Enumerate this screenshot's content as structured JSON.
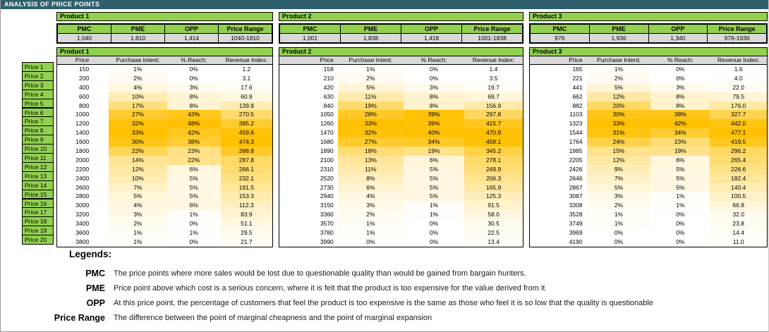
{
  "banner": {
    "title": "ANALYSIS OF PRICE POINTS"
  },
  "summary_headers": [
    "PMC",
    "PME",
    "OPP",
    "Price Range"
  ],
  "table_headers": [
    "Price",
    "Purchase Intent:",
    "% Reach:",
    "Revenue Index:"
  ],
  "row_labels": [
    "Price 1",
    "Price 2",
    "Price 3",
    "Price 4",
    "Price 5",
    "Price 6",
    "Price 7",
    "Price 8",
    "Price 9",
    "Price 10",
    "Price 11",
    "Price 12",
    "Price 13",
    "Price 14",
    "Price 15",
    "Price 16",
    "Price 17",
    "Price 18",
    "Price 19",
    "Price 20"
  ],
  "products": [
    {
      "name": "Product 1",
      "summary": [
        "1,040",
        "1,810",
        "1,414",
        "1040-1810"
      ],
      "rows": [
        [
          "150",
          "1%",
          "0%",
          "1.2"
        ],
        [
          "200",
          "2%",
          "0%",
          "3.1"
        ],
        [
          "400",
          "4%",
          "3%",
          "17.6"
        ],
        [
          "600",
          "10%",
          "8%",
          "60.9"
        ],
        [
          "800",
          "17%",
          "8%",
          "139.8"
        ],
        [
          "1000",
          "27%",
          "43%",
          "270.5"
        ],
        [
          "1200",
          "32%",
          "48%",
          "385.2"
        ],
        [
          "1400",
          "33%",
          "42%",
          "459.6"
        ],
        [
          "1600",
          "30%",
          "38%",
          "474.3"
        ],
        [
          "1800",
          "22%",
          "23%",
          "398.8"
        ],
        [
          "2000",
          "14%",
          "22%",
          "287.8"
        ],
        [
          "2200",
          "12%",
          "6%",
          "266.1"
        ],
        [
          "2400",
          "10%",
          "5%",
          "232.1"
        ],
        [
          "2600",
          "7%",
          "5%",
          "191.5"
        ],
        [
          "2800",
          "5%",
          "5%",
          "153.3"
        ],
        [
          "3000",
          "4%",
          "6%",
          "112.3"
        ],
        [
          "3200",
          "3%",
          "1%",
          "83.9"
        ],
        [
          "3400",
          "2%",
          "0%",
          "51.1"
        ],
        [
          "3600",
          "1%",
          "1%",
          "29.5"
        ],
        [
          "3800",
          "1%",
          "0%",
          "21.7"
        ]
      ]
    },
    {
      "name": "Product 2",
      "summary": [
        "1,001",
        "1,838",
        "1,418",
        "1001-1838"
      ],
      "rows": [
        [
          "158",
          "1%",
          "0%",
          "1.4"
        ],
        [
          "210",
          "2%",
          "0%",
          "3.5"
        ],
        [
          "420",
          "5%",
          "3%",
          "19.7"
        ],
        [
          "630",
          "11%",
          "8%",
          "69.7"
        ],
        [
          "840",
          "19%",
          "8%",
          "156.9"
        ],
        [
          "1050",
          "28%",
          "39%",
          "297.8"
        ],
        [
          "1260",
          "33%",
          "39%",
          "415.7"
        ],
        [
          "1470",
          "32%",
          "40%",
          "470.9"
        ],
        [
          "1680",
          "27%",
          "34%",
          "458.1"
        ],
        [
          "1890",
          "18%",
          "19%",
          "345.2"
        ],
        [
          "2100",
          "13%",
          "6%",
          "278.1"
        ],
        [
          "2310",
          "11%",
          "5%",
          "249.9"
        ],
        [
          "2520",
          "8%",
          "5%",
          "206.3"
        ],
        [
          "2730",
          "6%",
          "5%",
          "165.9"
        ],
        [
          "2940",
          "4%",
          "5%",
          "125.3"
        ],
        [
          "3150",
          "3%",
          "1%",
          "91.5"
        ],
        [
          "3360",
          "2%",
          "1%",
          "58.0"
        ],
        [
          "3570",
          "1%",
          "0%",
          "30.5"
        ],
        [
          "3780",
          "1%",
          "0%",
          "22.5"
        ],
        [
          "3990",
          "0%",
          "0%",
          "13.4"
        ]
      ]
    },
    {
      "name": "Product 3",
      "summary": [
        "976",
        "1,936",
        "1,340",
        "976-1936"
      ],
      "rows": [
        [
          "165",
          "1%",
          "0%",
          "1.6"
        ],
        [
          "221",
          "2%",
          "0%",
          "4.0"
        ],
        [
          "441",
          "5%",
          "3%",
          "22.0"
        ],
        [
          "662",
          "12%",
          "8%",
          "79.5"
        ],
        [
          "882",
          "20%",
          "8%",
          "176.0"
        ],
        [
          "1103",
          "30%",
          "38%",
          "327.7"
        ],
        [
          "1323",
          "33%",
          "42%",
          "442.0"
        ],
        [
          "1544",
          "31%",
          "34%",
          "477.1"
        ],
        [
          "1764",
          "24%",
          "23%",
          "419.5"
        ],
        [
          "1985",
          "15%",
          "19%",
          "296.2"
        ],
        [
          "2205",
          "12%",
          "6%",
          "265.4"
        ],
        [
          "2426",
          "9%",
          "5%",
          "226.6"
        ],
        [
          "2646",
          "7%",
          "5%",
          "182.4"
        ],
        [
          "2867",
          "5%",
          "5%",
          "140.4"
        ],
        [
          "3087",
          "3%",
          "1%",
          "100.5"
        ],
        [
          "3308",
          "2%",
          "1%",
          "66.8"
        ],
        [
          "3528",
          "1%",
          "0%",
          "32.0"
        ],
        [
          "3749",
          "1%",
          "0%",
          "23.8"
        ],
        [
          "3969",
          "0%",
          "0%",
          "14.4"
        ],
        [
          "4190",
          "0%",
          "0%",
          "11.0"
        ]
      ]
    }
  ],
  "legend": {
    "title": "Legends:",
    "items": [
      {
        "term": "PMC",
        "description": "The price points where more sales would be lost due to questionable quality than would be gained from bargain hunters."
      },
      {
        "term": "PME",
        "description": "Price point above which cost is a serious concern, where it is felt that the product is too expensive for the value derived from it"
      },
      {
        "term": "OPP",
        "description": "At this price point, the percentage of customers that feel the product is too expensive is the same as those who feel it is so low that the quality is questionable"
      },
      {
        "term": "Price Range",
        "description": "The difference between the point of marginal cheapness and the point of marginal expansion"
      }
    ]
  },
  "colors": {
    "banner_teal": "#2F5F6C",
    "header_green": "#92D050",
    "cell_gray": "#D9D9D9",
    "heat_max_orange": "#FFC000"
  }
}
